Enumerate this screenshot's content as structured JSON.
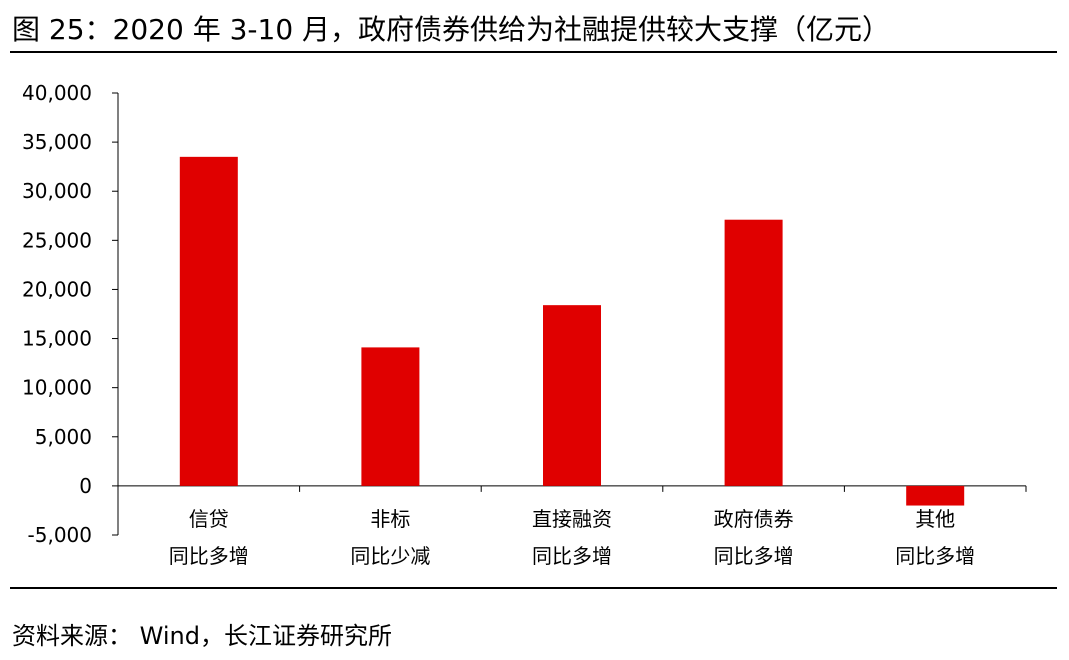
{
  "figure": {
    "title": "图  25：2020 年 3-10 月，政府债券供给为社融提供较大支撑（亿元）",
    "source": "资料来源：  Wind，长江证券研究所"
  },
  "chart_data": {
    "type": "bar",
    "title": "图  25：2020 年 3-10 月，政府债券供给为社融提供较大支撑（亿元）",
    "categories": [
      [
        "信贷",
        "同比多增"
      ],
      [
        "非标",
        "同比少减"
      ],
      [
        "直接融资",
        "同比多增"
      ],
      [
        "政府债券",
        "同比多增"
      ],
      [
        "其他",
        "同比多增"
      ]
    ],
    "values": [
      33500,
      14100,
      18400,
      27100,
      -2000
    ],
    "ylim": [
      -5000,
      40000
    ],
    "yticks": [
      40000,
      35000,
      30000,
      25000,
      20000,
      15000,
      10000,
      5000,
      0,
      -5000
    ],
    "ytick_labels": [
      "40,000",
      "35,000",
      "30,000",
      "25,000",
      "20,000",
      "15,000",
      "10,000",
      "5,000",
      "0",
      "-5,000"
    ],
    "bar_color": "#e00000",
    "grid": false,
    "legend": "none"
  }
}
